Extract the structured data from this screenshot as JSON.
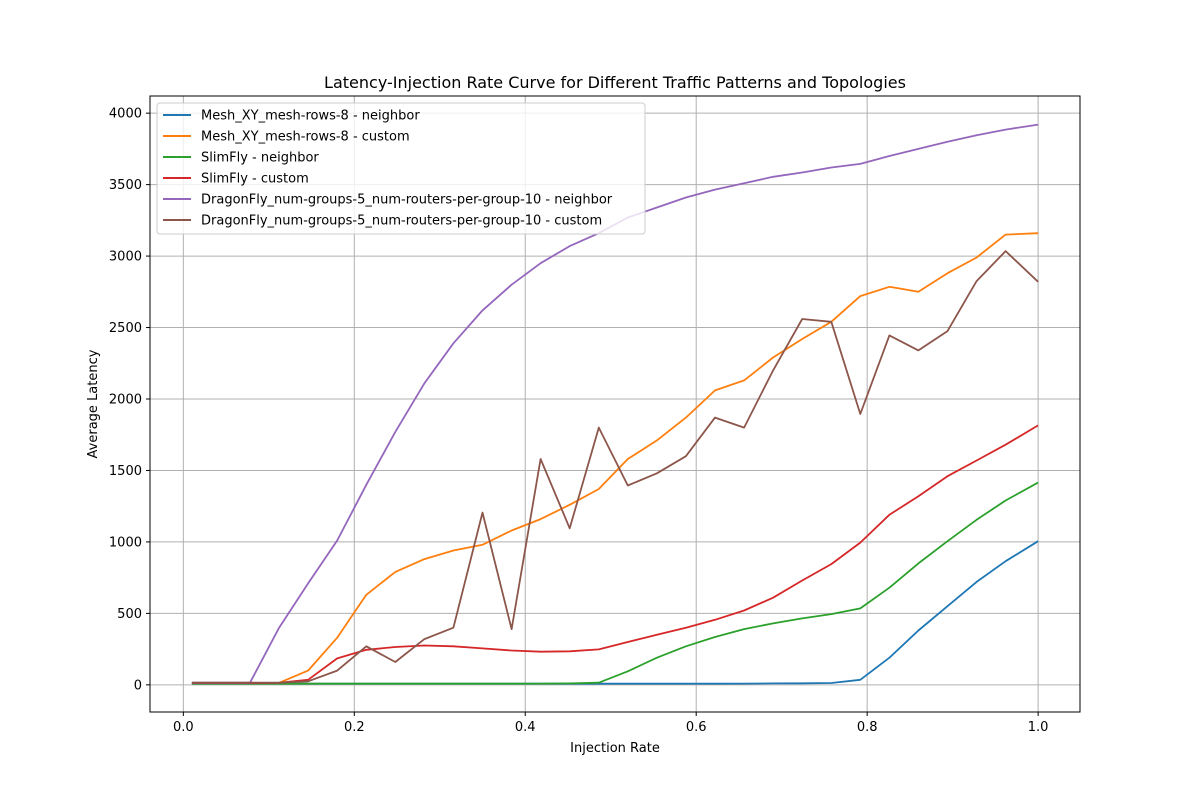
{
  "chart_data": {
    "type": "line",
    "title": "Latency-Injection Rate Curve for Different Traffic Patterns and Topologies",
    "xlabel": "Injection Rate",
    "ylabel": "Average Latency",
    "xlim": [
      -0.039,
      1.049
    ],
    "ylim": [
      -190,
      4120
    ],
    "xticks": [
      0.0,
      0.2,
      0.4,
      0.6,
      0.8,
      1.0
    ],
    "xtick_labels": [
      "0.0",
      "0.2",
      "0.4",
      "0.6",
      "0.8",
      "1.0"
    ],
    "yticks": [
      0,
      500,
      1000,
      1500,
      2000,
      2500,
      3000,
      3500,
      4000
    ],
    "ytick_labels": [
      "0",
      "500",
      "1000",
      "1500",
      "2000",
      "2500",
      "3000",
      "3500",
      "4000"
    ],
    "grid": true,
    "legend_position": "upper-left",
    "x": [
      0.01,
      0.044,
      0.078,
      0.112,
      0.146,
      0.18,
      0.214,
      0.248,
      0.282,
      0.316,
      0.35,
      0.384,
      0.418,
      0.452,
      0.486,
      0.52,
      0.554,
      0.588,
      0.622,
      0.656,
      0.69,
      0.724,
      0.758,
      0.792,
      0.826,
      0.86,
      0.894,
      0.928,
      0.962,
      1.0
    ],
    "series": [
      {
        "name": "Mesh_XY_mesh-rows-8 - neighbor",
        "color": "#1f77b4",
        "values": [
          8,
          8,
          8,
          8,
          8,
          8,
          8,
          8,
          8,
          8,
          8,
          8,
          8,
          8,
          8,
          8,
          8,
          8,
          8,
          9,
          10,
          11,
          13,
          35,
          190,
          380,
          550,
          720,
          865,
          1005
        ]
      },
      {
        "name": "Mesh_XY_mesh-rows-8 - custom",
        "color": "#ff7f0e",
        "values": [
          12,
          12,
          12,
          14,
          100,
          330,
          630,
          790,
          880,
          940,
          980,
          1080,
          1160,
          1260,
          1370,
          1580,
          1710,
          1870,
          2060,
          2130,
          2290,
          2420,
          2540,
          2720,
          2785,
          2750,
          2880,
          2990,
          3150,
          3160
        ]
      },
      {
        "name": "SlimFly - neighbor",
        "color": "#2ca02c",
        "values": [
          8,
          8,
          8,
          8,
          8,
          8,
          8,
          8,
          8,
          8,
          8,
          8,
          9,
          10,
          15,
          95,
          190,
          270,
          335,
          390,
          430,
          465,
          495,
          535,
          680,
          850,
          1005,
          1155,
          1290,
          1415
        ]
      },
      {
        "name": "SlimFly - custom",
        "color": "#d62728",
        "values": [
          12,
          12,
          12,
          14,
          35,
          185,
          245,
          265,
          275,
          270,
          255,
          240,
          232,
          235,
          248,
          300,
          350,
          400,
          455,
          520,
          610,
          730,
          845,
          995,
          1190,
          1320,
          1460,
          1570,
          1680,
          1815
        ]
      },
      {
        "name": "DragonFly_num-groups-5_num-routers-per-group-10 - neighbor",
        "color": "#9467bd",
        "values": [
          15,
          15,
          15,
          400,
          710,
          1010,
          1400,
          1770,
          2110,
          2390,
          2620,
          2800,
          2950,
          3070,
          3160,
          3270,
          3340,
          3410,
          3465,
          3510,
          3555,
          3585,
          3620,
          3645,
          3700,
          3750,
          3800,
          3845,
          3885,
          3920
        ]
      },
      {
        "name": "DragonFly_num-groups-5_num-routers-per-group-10 - custom",
        "color": "#8c564b",
        "values": [
          15,
          15,
          15,
          15,
          25,
          100,
          270,
          160,
          320,
          400,
          1205,
          390,
          1580,
          1095,
          1800,
          1395,
          1480,
          1600,
          1870,
          1800,
          2200,
          2560,
          2540,
          1895,
          2445,
          2340,
          2475,
          2825,
          3035,
          2820
        ]
      }
    ]
  }
}
